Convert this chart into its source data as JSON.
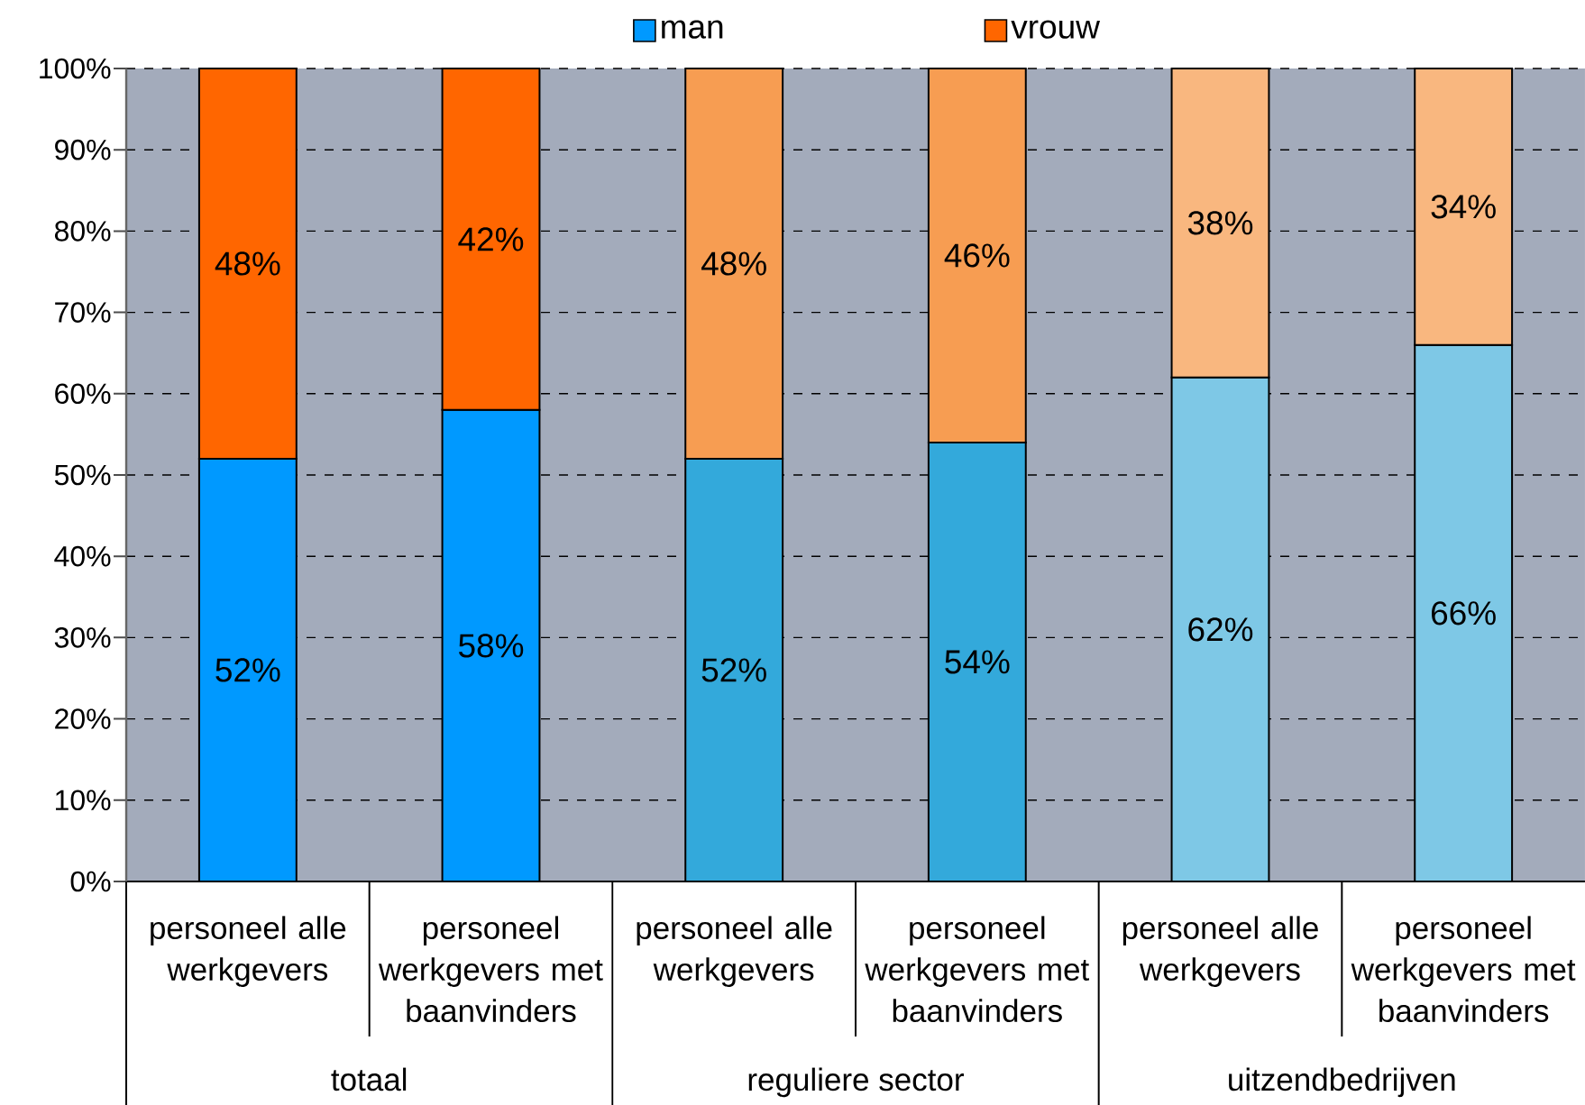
{
  "chart_data": {
    "type": "bar",
    "stacked": true,
    "categories": [
      "personeel alle werkgevers",
      "personeel werkgevers met baanvinders",
      "personeel alle werkgevers",
      "personeel werkgevers met baanvinders",
      "personeel alle werkgevers",
      "personeel werkgevers met baanvinders"
    ],
    "series": [
      {
        "name": "man",
        "color": "#0099ff",
        "colors": [
          "#0099ff",
          "#0099ff",
          "#33a9db",
          "#33a9db",
          "#7ec8e6",
          "#7ec8e6"
        ],
        "values": [
          52,
          58,
          52,
          54,
          62,
          66
        ],
        "value_labels": [
          "52%",
          "58%",
          "52%",
          "54%",
          "62%",
          "66%"
        ]
      },
      {
        "name": "vrouw",
        "color": "#ff6600",
        "colors": [
          "#ff6600",
          "#ff6600",
          "#f79d52",
          "#f79d52",
          "#f9b77f",
          "#f9b77f"
        ],
        "values": [
          48,
          42,
          48,
          46,
          38,
          34
        ],
        "value_labels": [
          "48%",
          "42%",
          "48%",
          "46%",
          "38%",
          "34%"
        ]
      }
    ],
    "ylim": [
      0,
      100
    ],
    "yticks": [
      {
        "value": 0,
        "label": "0%"
      },
      {
        "value": 10,
        "label": "10%"
      },
      {
        "value": 20,
        "label": "20%"
      },
      {
        "value": 30,
        "label": "30%"
      },
      {
        "value": 40,
        "label": "40%"
      },
      {
        "value": 50,
        "label": "50%"
      },
      {
        "value": 60,
        "label": "60%"
      },
      {
        "value": 70,
        "label": "70%"
      },
      {
        "value": 80,
        "label": "80%"
      },
      {
        "value": 90,
        "label": "90%"
      },
      {
        "value": 100,
        "label": "100%"
      }
    ],
    "grid": "y",
    "legend": "top",
    "annotations": [
      "totaal",
      "reguliere sector",
      "uitzendbedrijven"
    ]
  }
}
